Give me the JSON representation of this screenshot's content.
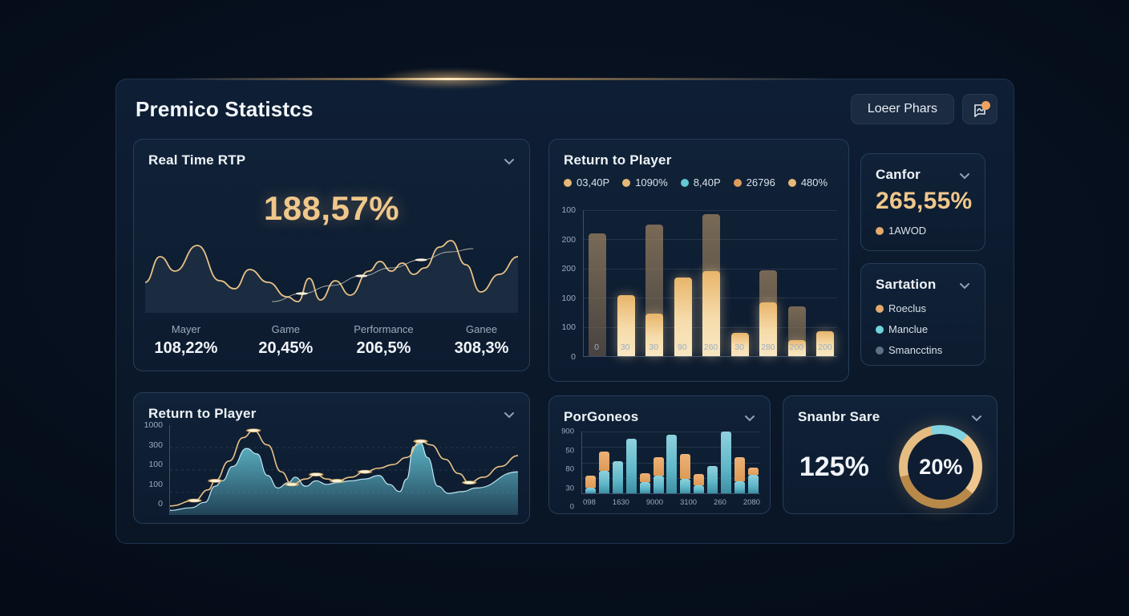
{
  "header": {
    "title": "Premico Statistcs",
    "button_label": "Loeer Phars",
    "notification_color": "#f0a35e"
  },
  "accent": {
    "gold": "#f0c78b",
    "teal": "#63c9d4",
    "orange": "#e8a663",
    "muted": "#9bacc0"
  },
  "real_time_rtp": {
    "title": "Real Time RTP",
    "big_value": "188,57%",
    "stats": [
      {
        "label": "Mayer",
        "value": "108,22%"
      },
      {
        "label": "Game",
        "value": "20,45%"
      },
      {
        "label": "Performance",
        "value": "206,5%"
      },
      {
        "label": "Ganee",
        "value": "308,3%"
      }
    ],
    "chart_data": {
      "type": "line",
      "main_line": [
        [
          0,
          62
        ],
        [
          4,
          30
        ],
        [
          8,
          48
        ],
        [
          14,
          16
        ],
        [
          20,
          60
        ],
        [
          24,
          70
        ],
        [
          28,
          46
        ],
        [
          33,
          62
        ],
        [
          38,
          80
        ],
        [
          41,
          86
        ],
        [
          44,
          57
        ],
        [
          47,
          84
        ],
        [
          51,
          60
        ],
        [
          55,
          78
        ],
        [
          60,
          48
        ],
        [
          63,
          36
        ],
        [
          66,
          48
        ],
        [
          69,
          38
        ],
        [
          72,
          52
        ],
        [
          75,
          44
        ],
        [
          79,
          18
        ],
        [
          82,
          10
        ],
        [
          86,
          40
        ],
        [
          90,
          74
        ],
        [
          95,
          52
        ],
        [
          100,
          30
        ]
      ],
      "sub_line": [
        [
          34,
          86
        ],
        [
          42,
          76
        ],
        [
          50,
          66
        ],
        [
          58,
          54
        ],
        [
          66,
          44
        ],
        [
          74,
          34
        ],
        [
          82,
          24
        ],
        [
          88,
          20
        ]
      ],
      "sub_dots": [
        [
          42,
          76
        ],
        [
          58,
          54
        ],
        [
          74,
          34
        ]
      ],
      "line_color": "#e9c287"
    }
  },
  "rtp_bars": {
    "title": "Return to Player",
    "legend": [
      {
        "label": "03,40P",
        "color": "#e6b877"
      },
      {
        "label": "1090%",
        "color": "#e6b877"
      },
      {
        "label": "8,40P",
        "color": "#63c9d4"
      },
      {
        "label": "26796",
        "color": "#df9c5b"
      },
      {
        "label": "480%",
        "color": "#e6b877"
      }
    ],
    "chart_data": {
      "type": "bar",
      "y_ticks": [
        "100",
        "200",
        "200",
        "100",
        "100",
        "0"
      ],
      "x_ticks": [
        "0",
        "30",
        "30",
        "90",
        "260",
        "30",
        "280",
        "200",
        "200"
      ],
      "bars": [
        {
          "back": 84,
          "front": 0
        },
        {
          "back": 0,
          "front": 42
        },
        {
          "back": 90,
          "front": 29
        },
        {
          "back": 0,
          "front": 54
        },
        {
          "back": 97,
          "front": 58
        },
        {
          "back": 0,
          "front": 16
        },
        {
          "back": 59,
          "front": 37
        },
        {
          "back": 34,
          "front": 11
        },
        {
          "back": 0,
          "front": 17
        }
      ]
    }
  },
  "canfor": {
    "title": "Canfor",
    "value": "265,55%",
    "legend": [
      {
        "label": "1AWOD",
        "color": "#e3aa6e"
      }
    ]
  },
  "sartation": {
    "title": "Sartation",
    "legend": [
      {
        "label": "Roeclus",
        "color": "#e3aa6e"
      },
      {
        "label": "Manclue",
        "color": "#6fd4dc"
      },
      {
        "label": "Smancctins",
        "color": "#5d7285"
      }
    ]
  },
  "rtp_area": {
    "title": "Return to Player",
    "chart_data": {
      "type": "area",
      "y_ticks": [
        "1000",
        "300",
        "100",
        "100",
        "0"
      ],
      "area": [
        [
          0,
          95
        ],
        [
          6,
          92
        ],
        [
          10,
          86
        ],
        [
          13,
          68
        ],
        [
          15,
          62
        ],
        [
          18,
          46
        ],
        [
          22,
          26
        ],
        [
          25,
          32
        ],
        [
          28,
          56
        ],
        [
          31,
          70
        ],
        [
          34,
          64
        ],
        [
          36,
          58
        ],
        [
          39,
          68
        ],
        [
          42,
          62
        ],
        [
          45,
          66
        ],
        [
          48,
          64
        ],
        [
          52,
          62
        ],
        [
          56,
          60
        ],
        [
          60,
          56
        ],
        [
          63,
          66
        ],
        [
          66,
          74
        ],
        [
          68,
          60
        ],
        [
          70,
          24
        ],
        [
          72,
          20
        ],
        [
          74,
          36
        ],
        [
          77,
          68
        ],
        [
          80,
          76
        ],
        [
          84,
          74
        ],
        [
          88,
          70
        ],
        [
          100,
          52
        ]
      ],
      "line": [
        [
          0,
          90
        ],
        [
          7,
          84
        ],
        [
          11,
          72
        ],
        [
          13,
          62
        ],
        [
          17,
          40
        ],
        [
          21,
          14
        ],
        [
          24,
          6
        ],
        [
          28,
          22
        ],
        [
          32,
          52
        ],
        [
          35,
          66
        ],
        [
          39,
          60
        ],
        [
          42,
          55
        ],
        [
          45,
          60
        ],
        [
          48,
          62
        ],
        [
          52,
          58
        ],
        [
          56,
          52
        ],
        [
          60,
          48
        ],
        [
          64,
          44
        ],
        [
          68,
          36
        ],
        [
          72,
          18
        ],
        [
          75,
          22
        ],
        [
          79,
          38
        ],
        [
          83,
          54
        ],
        [
          86,
          64
        ],
        [
          90,
          58
        ],
        [
          95,
          46
        ],
        [
          100,
          34
        ]
      ],
      "dots": [
        [
          7,
          84
        ],
        [
          13,
          62
        ],
        [
          24,
          6
        ],
        [
          35,
          66
        ],
        [
          42,
          55
        ],
        [
          48,
          62
        ],
        [
          56,
          52
        ],
        [
          72,
          18
        ],
        [
          86,
          64
        ]
      ],
      "area_color": "#5fb9cb",
      "line_color": "#e9c287"
    }
  },
  "porgoneos": {
    "title": "PorGoneos",
    "chart_data": {
      "type": "bar",
      "y_ticks": [
        "900",
        "50",
        "80",
        "30",
        "0"
      ],
      "x_ticks": [
        "098",
        "1630",
        "9000",
        "3100",
        "260",
        "2080"
      ],
      "bars": [
        {
          "teal": 9,
          "orange": 19
        },
        {
          "teal": 36,
          "orange": 32
        },
        {
          "teal": 52,
          "orange": 0
        },
        {
          "teal": 88,
          "orange": 0
        },
        {
          "teal": 18,
          "orange": 14
        },
        {
          "teal": 28,
          "orange": 30
        },
        {
          "teal": 95,
          "orange": 0
        },
        {
          "teal": 24,
          "orange": 40
        },
        {
          "teal": 13,
          "orange": 18
        },
        {
          "teal": 44,
          "orange": 0
        },
        {
          "teal": 100,
          "orange": 0
        },
        {
          "teal": 20,
          "orange": 38
        },
        {
          "teal": 30,
          "orange": 12
        }
      ]
    }
  },
  "snanbr": {
    "title": "Snanbr Sare",
    "left_value": "125%",
    "donut_value": "20%",
    "chart_data": {
      "type": "pie",
      "teal_pct": 15,
      "teal_color": "#82d3de",
      "gold_colors": [
        "#efc68d",
        "#b9894a",
        "#e5bc82"
      ],
      "start_deg": -14
    }
  }
}
